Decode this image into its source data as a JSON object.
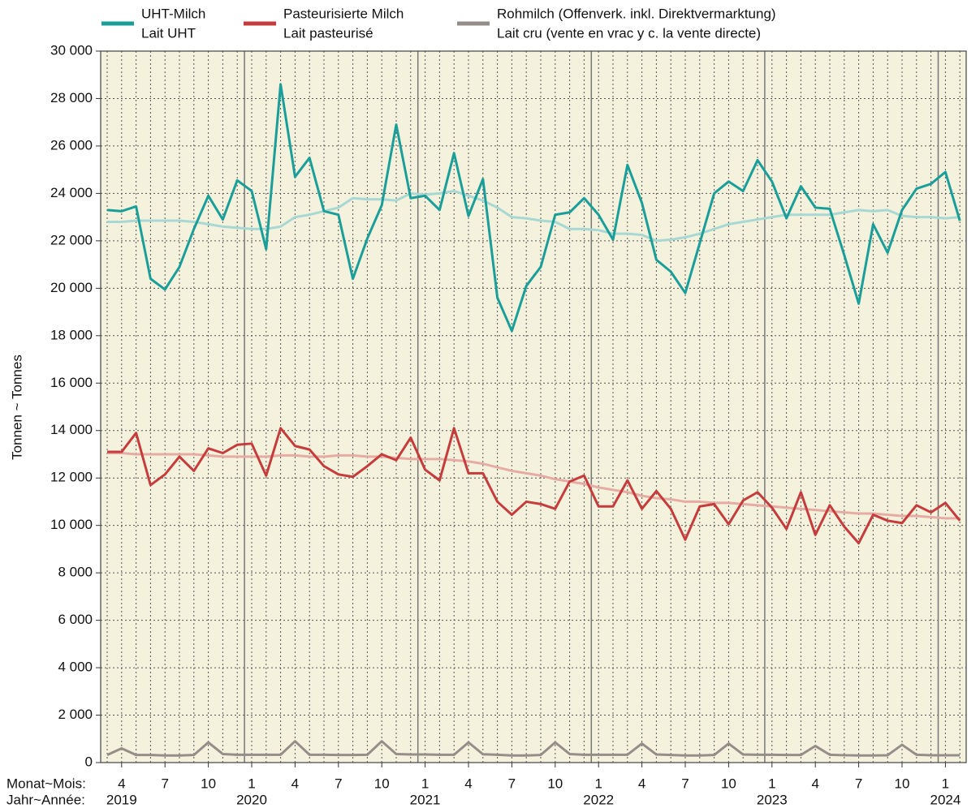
{
  "chart_data": {
    "type": "line",
    "y_label": "Tonnen   ~   Tonnes",
    "month_caption": "Monat~Mois:",
    "year_caption": "Jahr~Année:",
    "categories": [
      null,
      "4",
      null,
      null,
      "7",
      null,
      null,
      "10",
      null,
      null,
      "1",
      null,
      null,
      "4",
      null,
      null,
      "7",
      null,
      null,
      "10",
      null,
      null,
      "1",
      null,
      null,
      "4",
      null,
      null,
      "7",
      null,
      null,
      "10",
      null,
      null,
      "1",
      null,
      null,
      "4",
      null,
      null,
      "7",
      null,
      null,
      "10",
      null,
      null,
      "1",
      null,
      null,
      "4",
      null,
      null,
      "7",
      null,
      null,
      "10",
      null,
      null,
      "1",
      null
    ],
    "year_labels": [
      null,
      "2019",
      null,
      null,
      null,
      null,
      null,
      null,
      null,
      null,
      "2020",
      null,
      null,
      null,
      null,
      null,
      null,
      null,
      null,
      null,
      null,
      null,
      "2021",
      null,
      null,
      null,
      null,
      null,
      null,
      null,
      null,
      null,
      null,
      null,
      "2022",
      null,
      null,
      null,
      null,
      null,
      null,
      null,
      null,
      null,
      null,
      null,
      "2023",
      null,
      null,
      null,
      null,
      null,
      null,
      null,
      null,
      null,
      null,
      null,
      "2024",
      null
    ],
    "ylim": [
      0,
      30000
    ],
    "yticks": [
      0,
      {
        "value": 2000,
        "label": "2 000"
      },
      {
        "value": 4000,
        "label": "4 000"
      },
      {
        "value": 6000,
        "label": "6 000"
      },
      {
        "value": 8000,
        "label": "8 000"
      },
      {
        "value": 10000,
        "label": "10 000"
      },
      {
        "value": 12000,
        "label": "12 000"
      },
      {
        "value": 14000,
        "label": "14 000"
      },
      {
        "value": 16000,
        "label": "16 000"
      },
      {
        "value": 18000,
        "label": "18 000"
      },
      {
        "value": 20000,
        "label": "20 000"
      },
      {
        "value": 22000,
        "label": "22 000"
      },
      {
        "value": 24000,
        "label": "24 000"
      },
      {
        "value": 26000,
        "label": "26 000"
      },
      {
        "value": 28000,
        "label": "28 000"
      },
      {
        "value": 30000,
        "label": "30 000"
      }
    ],
    "grid": true,
    "background": "#f4f2dc",
    "series": [
      {
        "name": "UHT-Milch",
        "name_fr": "Lait UHT",
        "color": "#1a9e9a",
        "values": [
          23300,
          23250,
          23450,
          20400,
          19950,
          20900,
          22500,
          23900,
          22900,
          24550,
          24100,
          21650,
          28600,
          24700,
          25500,
          23250,
          23100,
          20400,
          22100,
          23500,
          26900,
          23800,
          23900,
          23300,
          25700,
          23050,
          24600,
          19600,
          18200,
          20100,
          20900,
          23100,
          23200,
          23800,
          23100,
          22050,
          25200,
          23600,
          21200,
          20700,
          19800,
          21900,
          24000,
          24500,
          24100,
          25400,
          24500,
          22950,
          24300,
          23400,
          23350,
          21400,
          19350,
          22700,
          21500,
          23300,
          24200,
          24400,
          24900,
          22850
        ]
      },
      {
        "name": "Pasteurisierte Milch",
        "name_fr": "Lait pasteurisé",
        "color": "#c63c3c",
        "values": [
          13100,
          13100,
          13900,
          11700,
          12150,
          12900,
          12300,
          13250,
          13050,
          13400,
          13450,
          12100,
          14100,
          13350,
          13200,
          12500,
          12150,
          12050,
          12500,
          13000,
          12750,
          13700,
          12350,
          11900,
          14100,
          12200,
          12200,
          11000,
          10450,
          11000,
          10900,
          10700,
          11850,
          12100,
          10800,
          10800,
          11900,
          10700,
          11450,
          10700,
          9400,
          10800,
          10900,
          10050,
          11050,
          11400,
          10750,
          9850,
          11400,
          9600,
          10850,
          9950,
          9250,
          10450,
          10200,
          10100,
          10850,
          10550,
          10950,
          10200
        ]
      },
      {
        "name": "Rohmilch (Offenverk. inkl. Direktvermarktung)",
        "name_fr": "Lait cru (vente en vrac y c. la vente directe)",
        "color": "#948d8a",
        "values": [
          320,
          600,
          320,
          320,
          300,
          300,
          320,
          850,
          360,
          330,
          330,
          330,
          330,
          900,
          330,
          330,
          320,
          320,
          330,
          900,
          360,
          340,
          340,
          330,
          330,
          850,
          350,
          330,
          300,
          300,
          320,
          850,
          360,
          330,
          330,
          330,
          330,
          800,
          340,
          320,
          300,
          300,
          320,
          800,
          340,
          330,
          330,
          320,
          320,
          700,
          330,
          310,
          300,
          300,
          310,
          750,
          330,
          310,
          310,
          310
        ]
      }
    ],
    "trend_series": [
      {
        "color": "#a7d8d3",
        "values": [
          22800,
          22800,
          22850,
          22850,
          22850,
          22850,
          22800,
          22700,
          22600,
          22550,
          22500,
          22500,
          22600,
          23000,
          23100,
          23250,
          23400,
          23800,
          23750,
          23750,
          23700,
          24000,
          23950,
          24000,
          24100,
          23900,
          23700,
          23400,
          23000,
          22950,
          22850,
          22800,
          22500,
          22500,
          22450,
          22300,
          22300,
          22250,
          22000,
          22050,
          22150,
          22300,
          22500,
          22700,
          22800,
          22900,
          23000,
          23100,
          23100,
          23100,
          23100,
          23200,
          23300,
          23250,
          23300,
          23050,
          23000,
          23000,
          22950,
          23000
        ]
      },
      {
        "color": "#e6aca4",
        "values": [
          13050,
          13050,
          13000,
          13000,
          13000,
          13000,
          13000,
          12950,
          12900,
          12900,
          12900,
          12900,
          12950,
          12950,
          12900,
          12900,
          12950,
          12950,
          12900,
          12900,
          12850,
          12800,
          12800,
          12800,
          12750,
          12700,
          12600,
          12450,
          12300,
          12200,
          12100,
          11950,
          11850,
          11750,
          11600,
          11500,
          11400,
          11250,
          11150,
          11100,
          11000,
          11000,
          10950,
          10950,
          10900,
          10850,
          10800,
          10750,
          10700,
          10650,
          10600,
          10550,
          10500,
          10500,
          10450,
          10400,
          10400,
          10350,
          10300,
          10300
        ]
      }
    ]
  }
}
